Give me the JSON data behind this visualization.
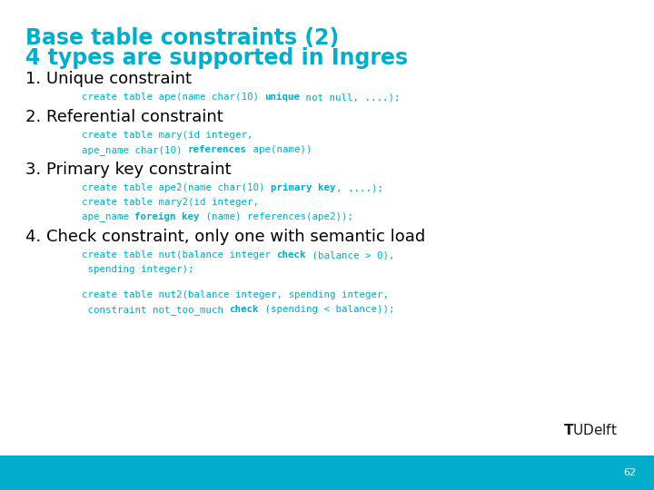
{
  "title_line1": "Base table constraints (2)",
  "title_line2": "4 types are supported in Ingres",
  "title_color": "#00AECC",
  "bg_color": "#FFFFFF",
  "footer_color": "#00AECC",
  "page_number": "62",
  "code_color": "#00AECC",
  "heading_color": "#000000",
  "title_fontsize": 17,
  "heading_fontsize": 13,
  "code_fontsize": 7.8,
  "num_fontsize": 13
}
